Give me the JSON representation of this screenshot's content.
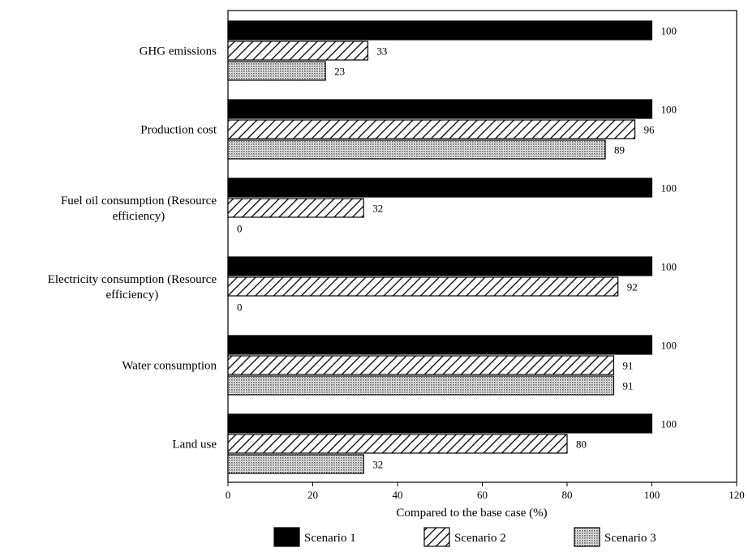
{
  "chart_data": {
    "type": "bar",
    "orientation": "horizontal",
    "categories": [
      [
        "GHG emissions"
      ],
      [
        "Production cost"
      ],
      [
        "Fuel oil consumption (Resource",
        "efficiency)"
      ],
      [
        "Electricity consumption (Resource",
        "efficiency)"
      ],
      [
        "Water consumption"
      ],
      [
        "Land use"
      ]
    ],
    "series": [
      {
        "name": "Scenario 1",
        "values": [
          100,
          100,
          100,
          100,
          100,
          100
        ],
        "pattern": "solid"
      },
      {
        "name": "Scenario 2",
        "values": [
          33,
          96,
          32,
          92,
          91,
          80
        ],
        "pattern": "hatch"
      },
      {
        "name": "Scenario 3",
        "values": [
          23,
          89,
          0,
          0,
          91,
          32
        ],
        "pattern": "dots"
      }
    ],
    "xlabel": "Compared to the base case (%)",
    "xlim": [
      0,
      120
    ],
    "xticks": [
      "0",
      "20",
      "40",
      "60",
      "80",
      "100",
      "120"
    ],
    "grid": false,
    "legend": "bottom",
    "colors": {
      "bar_fill": "#000000",
      "background": "#ffffff",
      "dot_fill": "#d9d9d9"
    }
  }
}
